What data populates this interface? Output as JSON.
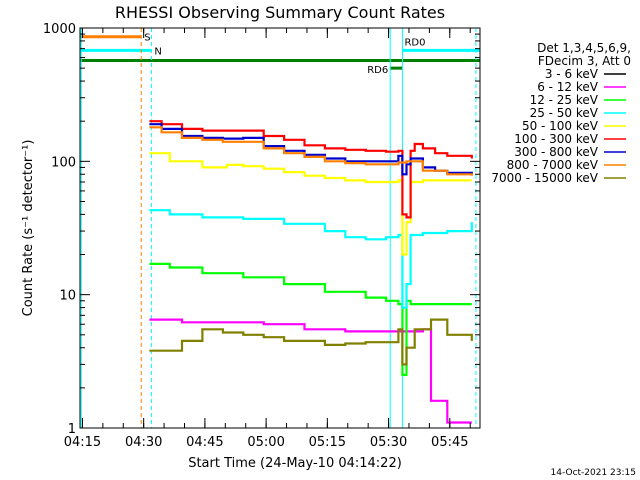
{
  "chart_data": {
    "type": "line",
    "title": "RHESSI Observing Summary Count Rates",
    "xlabel": "Start Time (24-May-10 04:14:22)",
    "ylabel": "Count Rate (s⁻¹ detector⁻¹)",
    "xlim_minutes": [
      0,
      98
    ],
    "ylim": [
      1,
      1000
    ],
    "yscale": "log",
    "x_ticks": [
      {
        "t": 0.6,
        "label": "04:15"
      },
      {
        "t": 15.6,
        "label": "04:30"
      },
      {
        "t": 30.6,
        "label": "04:45"
      },
      {
        "t": 45.6,
        "label": "05:00"
      },
      {
        "t": 60.6,
        "label": "05:15"
      },
      {
        "t": 75.6,
        "label": "05:30"
      },
      {
        "t": 90.6,
        "label": "05:45"
      }
    ],
    "y_ticks": [
      {
        "v": 1,
        "label": "1"
      },
      {
        "v": 10,
        "label": "10"
      },
      {
        "v": 100,
        "label": "100"
      },
      {
        "v": 1000,
        "label": "1000"
      }
    ],
    "legend_header": [
      "Det 1,3,4,5,6,9,",
      "FDecim 3, Att 0"
    ],
    "legend_position": "right",
    "series": [
      {
        "name": "3 - 6 keV",
        "color": "#000000",
        "x": [],
        "values": []
      },
      {
        "name": "6 - 12 keV",
        "color": "#ff00ff",
        "x": [
          17,
          25,
          35,
          45,
          55,
          65,
          75,
          80,
          84,
          86,
          90,
          96
        ],
        "values": [
          6.5,
          6.2,
          6.2,
          6.0,
          5.5,
          5.3,
          5.3,
          5.3,
          5.5,
          1.6,
          1.1,
          1.1
        ]
      },
      {
        "name": "12 - 25 keV",
        "color": "#00ff00",
        "x": [
          17,
          22,
          30,
          40,
          50,
          60,
          70,
          75,
          78,
          79,
          80,
          81,
          84,
          90,
          96
        ],
        "values": [
          17,
          16,
          14.5,
          13.5,
          12,
          10.5,
          9.5,
          9,
          8.5,
          2.5,
          9,
          8.5,
          8.5,
          8.5,
          8.5
        ]
      },
      {
        "name": "25 - 50 keV",
        "color": "#00ffff",
        "x": [
          17,
          22,
          30,
          40,
          50,
          60,
          65,
          70,
          75,
          78,
          79,
          80,
          81,
          84,
          90,
          96
        ],
        "values": [
          43,
          40,
          38,
          37,
          34,
          30,
          27,
          26,
          27,
          28,
          8,
          12,
          28,
          29,
          30,
          35
        ]
      },
      {
        "name": "50 - 100 keV",
        "color": "#ffff00",
        "x": [
          17,
          22,
          30,
          36,
          40,
          45,
          50,
          55,
          60,
          65,
          70,
          75,
          78,
          79,
          80,
          81,
          84,
          90,
          96
        ],
        "values": [
          115,
          100,
          90,
          94,
          92,
          88,
          83,
          78,
          75,
          72,
          70,
          70,
          72,
          20,
          35,
          70,
          72,
          72,
          72
        ]
      },
      {
        "name": "100 - 300 keV",
        "color": "#ff0000",
        "x": [
          17,
          20,
          25,
          30,
          35,
          40,
          45,
          50,
          55,
          60,
          65,
          70,
          75,
          78,
          79,
          80,
          81,
          82,
          84,
          87,
          90,
          96
        ],
        "values": [
          200,
          190,
          175,
          170,
          170,
          170,
          155,
          145,
          132,
          125,
          122,
          120,
          118,
          120,
          40,
          38,
          120,
          135,
          125,
          115,
          110,
          105
        ]
      },
      {
        "name": "300 - 800 keV",
        "color": "#0000cc",
        "x": [
          17,
          20,
          25,
          30,
          35,
          40,
          45,
          50,
          55,
          60,
          65,
          70,
          75,
          78,
          79,
          80,
          81,
          84,
          87,
          90,
          96
        ],
        "values": [
          190,
          175,
          155,
          150,
          148,
          150,
          130,
          120,
          112,
          105,
          100,
          100,
          100,
          110,
          80,
          95,
          105,
          90,
          85,
          82,
          80
        ]
      },
      {
        "name": "800 - 7000 keV",
        "color": "#ff8000",
        "x": [
          17,
          20,
          25,
          30,
          35,
          40,
          45,
          50,
          55,
          60,
          65,
          70,
          75,
          78,
          80,
          81,
          84,
          90,
          96
        ],
        "values": [
          180,
          165,
          150,
          145,
          140,
          140,
          125,
          115,
          108,
          100,
          97,
          95,
          95,
          98,
          100,
          100,
          85,
          80,
          78
        ]
      },
      {
        "name": "7000 - 15000 keV",
        "color": "#808000",
        "x": [
          17,
          20,
          25,
          30,
          35,
          40,
          45,
          50,
          55,
          60,
          65,
          70,
          75,
          78,
          79,
          80,
          82,
          86,
          90,
          96
        ],
        "values": [
          3.8,
          3.8,
          4.5,
          5.5,
          5.2,
          5.0,
          4.8,
          4.5,
          4.5,
          4.2,
          4.3,
          4.4,
          4.4,
          5.5,
          3.0,
          4.0,
          5.5,
          6.5,
          5.0,
          4.5
        ]
      }
    ],
    "flags": [
      {
        "label": "S",
        "color": "#ff8000",
        "y": 860,
        "t_start": 0,
        "t_end": 15
      },
      {
        "label": "N",
        "color": "#00ffff",
        "y": 680,
        "t_start": 0,
        "t_end": 17.5
      },
      {
        "label": "RD0",
        "color": "#00ffff",
        "y": 680,
        "t_start": 79,
        "t_end": 98
      },
      {
        "label": "",
        "color": "#008000",
        "y": 570,
        "t_start": 0,
        "t_end": 98
      },
      {
        "label": "RD6",
        "color": "#008000",
        "y": 500,
        "t_start": 76,
        "t_end": 79
      }
    ],
    "vlines": [
      {
        "t": 0.3,
        "color": "#00ffff",
        "dash": false
      },
      {
        "t": 15,
        "color": "#ff8000",
        "dash": true
      },
      {
        "t": 17.5,
        "color": "#00ffff",
        "dash": true
      },
      {
        "t": 76,
        "color": "#00ffff",
        "dash": false
      },
      {
        "t": 79,
        "color": "#00ffff",
        "dash": false
      },
      {
        "t": 97,
        "color": "#00ffff",
        "dash": true
      }
    ],
    "grid": false
  },
  "footer_date": "14-Oct-2021 23:15"
}
